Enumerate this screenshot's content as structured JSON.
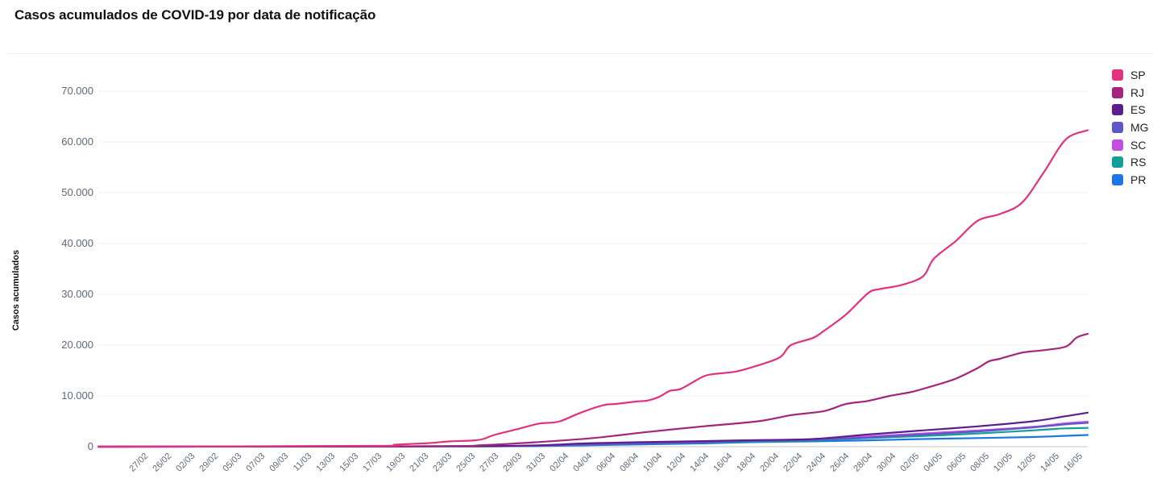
{
  "chart_data": {
    "type": "line",
    "title": "Casos acumulados de COVID-19 por data de notificação",
    "xlabel": "",
    "ylabel": "Casos acumulados",
    "ylim": [
      0,
      70000
    ],
    "yticks": [
      0,
      10000,
      20000,
      30000,
      40000,
      50000,
      60000,
      70000
    ],
    "ytick_labels": [
      "0",
      "10.000",
      "20.000",
      "30.000",
      "40.000",
      "50.000",
      "60.000",
      "70.000"
    ],
    "xtick_labels": [
      "27/02",
      "26/02",
      "02/03",
      "29/02",
      "05/03",
      "07/03",
      "09/03",
      "11/03",
      "13/03",
      "15/03",
      "17/03",
      "19/03",
      "21/03",
      "23/03",
      "25/03",
      "27/03",
      "29/03",
      "31/03",
      "02/04",
      "04/04",
      "06/04",
      "08/04",
      "10/04",
      "12/04",
      "14/04",
      "16/04",
      "18/04",
      "20/04",
      "22/04",
      "24/04",
      "26/04",
      "28/04",
      "30/04",
      "02/05",
      "04/05",
      "06/05",
      "08/05",
      "10/05",
      "12/05",
      "14/05",
      "16/05"
    ],
    "grid": "horizontal",
    "legend_position": "top-right",
    "series": [
      {
        "name": "SP",
        "color": "#e0327e",
        "values": [
          [
            0,
            0
          ],
          [
            25,
            160
          ],
          [
            27,
            400
          ],
          [
            30,
            700
          ],
          [
            32,
            1050
          ],
          [
            34,
            1200
          ],
          [
            35,
            1500
          ],
          [
            36,
            2300
          ],
          [
            38,
            3400
          ],
          [
            40,
            4500
          ],
          [
            41,
            4700
          ],
          [
            42,
            5000
          ],
          [
            44,
            6800
          ],
          [
            46,
            8200
          ],
          [
            47,
            8400
          ],
          [
            49,
            8900
          ],
          [
            50,
            9100
          ],
          [
            51,
            9800
          ],
          [
            52,
            11000
          ],
          [
            53,
            11400
          ],
          [
            55,
            13800
          ],
          [
            56,
            14300
          ],
          [
            58,
            14800
          ],
          [
            60,
            16000
          ],
          [
            62,
            17600
          ],
          [
            63,
            20000
          ],
          [
            65,
            21400
          ],
          [
            66,
            22800
          ],
          [
            68,
            26000
          ],
          [
            70,
            30200
          ],
          [
            71,
            31000
          ],
          [
            73,
            31800
          ],
          [
            75,
            33500
          ],
          [
            76,
            37000
          ],
          [
            78,
            40500
          ],
          [
            80,
            44500
          ],
          [
            82,
            45800
          ],
          [
            84,
            48000
          ],
          [
            86,
            54000
          ],
          [
            88,
            60500
          ],
          [
            90,
            62300
          ]
        ]
      },
      {
        "name": "RJ",
        "color": "#a3267a",
        "values": [
          [
            0,
            0
          ],
          [
            30,
            80
          ],
          [
            35,
            300
          ],
          [
            40,
            900
          ],
          [
            45,
            1700
          ],
          [
            50,
            2900
          ],
          [
            55,
            4000
          ],
          [
            60,
            5000
          ],
          [
            63,
            6200
          ],
          [
            66,
            7000
          ],
          [
            68,
            8400
          ],
          [
            70,
            9000
          ],
          [
            72,
            10000
          ],
          [
            74,
            10800
          ],
          [
            76,
            12000
          ],
          [
            78,
            13400
          ],
          [
            80,
            15500
          ],
          [
            81,
            16800
          ],
          [
            82,
            17300
          ],
          [
            84,
            18500
          ],
          [
            86,
            19000
          ],
          [
            88,
            19700
          ],
          [
            89,
            21500
          ],
          [
            90,
            22200
          ]
        ]
      },
      {
        "name": "ES",
        "color": "#5b1f8c",
        "values": [
          [
            0,
            0
          ],
          [
            35,
            100
          ],
          [
            45,
            700
          ],
          [
            55,
            1100
          ],
          [
            60,
            1300
          ],
          [
            65,
            1500
          ],
          [
            70,
            2400
          ],
          [
            75,
            3200
          ],
          [
            80,
            4000
          ],
          [
            85,
            5000
          ],
          [
            88,
            6000
          ],
          [
            90,
            6700
          ]
        ]
      },
      {
        "name": "MG",
        "color": "#5d57c8",
        "values": [
          [
            0,
            0
          ],
          [
            35,
            90
          ],
          [
            45,
            450
          ],
          [
            55,
            850
          ],
          [
            60,
            1150
          ],
          [
            65,
            1350
          ],
          [
            70,
            1800
          ],
          [
            75,
            2400
          ],
          [
            80,
            3000
          ],
          [
            85,
            3800
          ],
          [
            88,
            4400
          ],
          [
            90,
            4700
          ]
        ]
      },
      {
        "name": "SC",
        "color": "#c44ee4",
        "values": [
          [
            0,
            0
          ],
          [
            35,
            90
          ],
          [
            45,
            450
          ],
          [
            55,
            900
          ],
          [
            60,
            1200
          ],
          [
            65,
            1450
          ],
          [
            70,
            2000
          ],
          [
            75,
            2600
          ],
          [
            80,
            3200
          ],
          [
            85,
            3900
          ],
          [
            88,
            4600
          ],
          [
            90,
            4900
          ]
        ]
      },
      {
        "name": "RS",
        "color": "#139e98",
        "values": [
          [
            0,
            0
          ],
          [
            35,
            80
          ],
          [
            45,
            400
          ],
          [
            55,
            800
          ],
          [
            60,
            1000
          ],
          [
            65,
            1250
          ],
          [
            70,
            1700
          ],
          [
            75,
            2100
          ],
          [
            80,
            2600
          ],
          [
            85,
            3200
          ],
          [
            87,
            3500
          ],
          [
            88,
            3600
          ],
          [
            90,
            3700
          ]
        ]
      },
      {
        "name": "PR",
        "color": "#1a77e0",
        "values": [
          [
            0,
            0
          ],
          [
            35,
            70
          ],
          [
            45,
            300
          ],
          [
            55,
            650
          ],
          [
            60,
            900
          ],
          [
            65,
            1050
          ],
          [
            70,
            1250
          ],
          [
            75,
            1500
          ],
          [
            80,
            1700
          ],
          [
            85,
            1900
          ],
          [
            88,
            2150
          ],
          [
            90,
            2300
          ]
        ]
      }
    ]
  }
}
